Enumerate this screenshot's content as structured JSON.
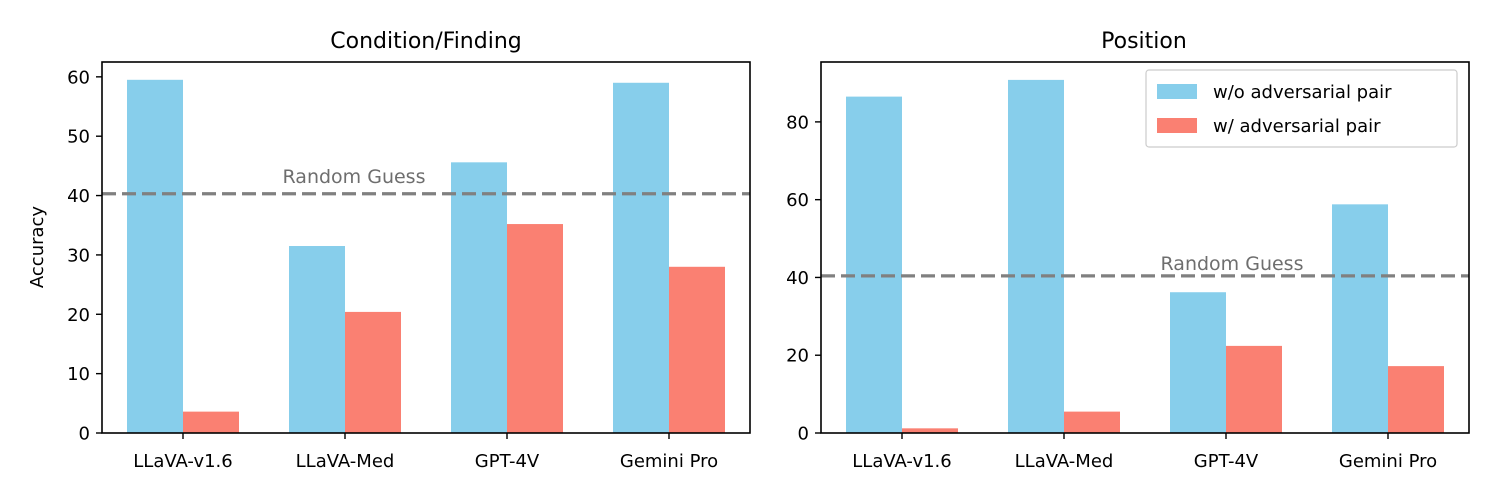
{
  "chart_data": [
    {
      "type": "bar",
      "title": "Condition/Finding",
      "ylabel": "Accuracy",
      "xlabel": "",
      "categories": [
        "LLaVA-v1.6",
        "LLaVA-Med",
        "GPT-4V",
        "Gemini Pro"
      ],
      "series": [
        {
          "name": "w/o adversarial pair",
          "color": "#87CEEB",
          "values": [
            59.5,
            31.5,
            45.6,
            59.0
          ]
        },
        {
          "name": "w/ adversarial pair",
          "color": "#FA8072",
          "values": [
            3.6,
            20.4,
            35.2,
            28.0
          ]
        }
      ],
      "ylim": [
        0,
        62.5
      ],
      "yticks": [
        0,
        10,
        20,
        30,
        40,
        50,
        60
      ],
      "reference_line": {
        "value": 40.3,
        "label": "Random Guess",
        "style": "dashed",
        "color": "#808080"
      },
      "legend": "none",
      "grid": false
    },
    {
      "type": "bar",
      "title": "Position",
      "ylabel": "",
      "xlabel": "",
      "categories": [
        "LLaVA-v1.6",
        "LLaVA-Med",
        "GPT-4V",
        "Gemini Pro"
      ],
      "series": [
        {
          "name": "w/o adversarial pair",
          "color": "#87CEEB",
          "values": [
            86.5,
            90.8,
            36.2,
            58.8
          ]
        },
        {
          "name": "w/ adversarial pair",
          "color": "#FA8072",
          "values": [
            1.2,
            5.5,
            22.4,
            17.2
          ]
        }
      ],
      "ylim": [
        0,
        95.4
      ],
      "yticks": [
        0,
        20,
        40,
        60,
        80
      ],
      "reference_line": {
        "value": 40.4,
        "label": "Random Guess",
        "style": "dashed",
        "color": "#808080"
      },
      "legend": "top-right",
      "grid": false
    }
  ]
}
